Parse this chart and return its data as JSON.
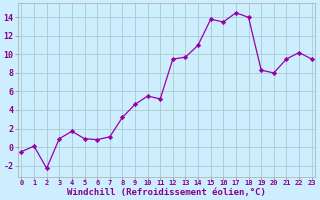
{
  "x": [
    0,
    1,
    2,
    3,
    4,
    5,
    6,
    7,
    8,
    9,
    10,
    11,
    12,
    13,
    14,
    15,
    16,
    17,
    18,
    19,
    20,
    21,
    22,
    23
  ],
  "y": [
    -0.5,
    0.1,
    -2.3,
    0.9,
    1.7,
    0.9,
    0.8,
    1.1,
    3.2,
    4.6,
    5.5,
    5.2,
    9.5,
    9.7,
    11.0,
    13.8,
    13.5,
    14.5,
    14.0,
    8.3,
    8.0,
    9.5,
    10.2,
    9.5
  ],
  "x_ticks": [
    0,
    1,
    2,
    3,
    4,
    5,
    6,
    7,
    8,
    9,
    10,
    11,
    12,
    13,
    14,
    15,
    16,
    17,
    18,
    19,
    20,
    21,
    22,
    23
  ],
  "x_tick_labels": [
    "0",
    "1",
    "2",
    "3",
    "4",
    "5",
    "6",
    "7",
    "8",
    "9",
    "10",
    "11",
    "12",
    "13",
    "14",
    "15",
    "16",
    "17",
    "18",
    "19",
    "20",
    "21",
    "22",
    "23"
  ],
  "y_ticks": [
    -2,
    0,
    2,
    4,
    6,
    8,
    10,
    12,
    14
  ],
  "y_tick_labels": [
    "-2",
    "0",
    "2",
    "4",
    "6",
    "8",
    "10",
    "12",
    "14"
  ],
  "ylim": [
    -3.2,
    15.5
  ],
  "xlim": [
    -0.3,
    23.3
  ],
  "line_color": "#9900aa",
  "marker": "D",
  "marker_size": 2.2,
  "xlabel": "Windchill (Refroidissement éolien,°C)",
  "background_color": "#cceeff",
  "grid_color": "#aacccc",
  "tick_color": "#880088",
  "label_color": "#880088"
}
